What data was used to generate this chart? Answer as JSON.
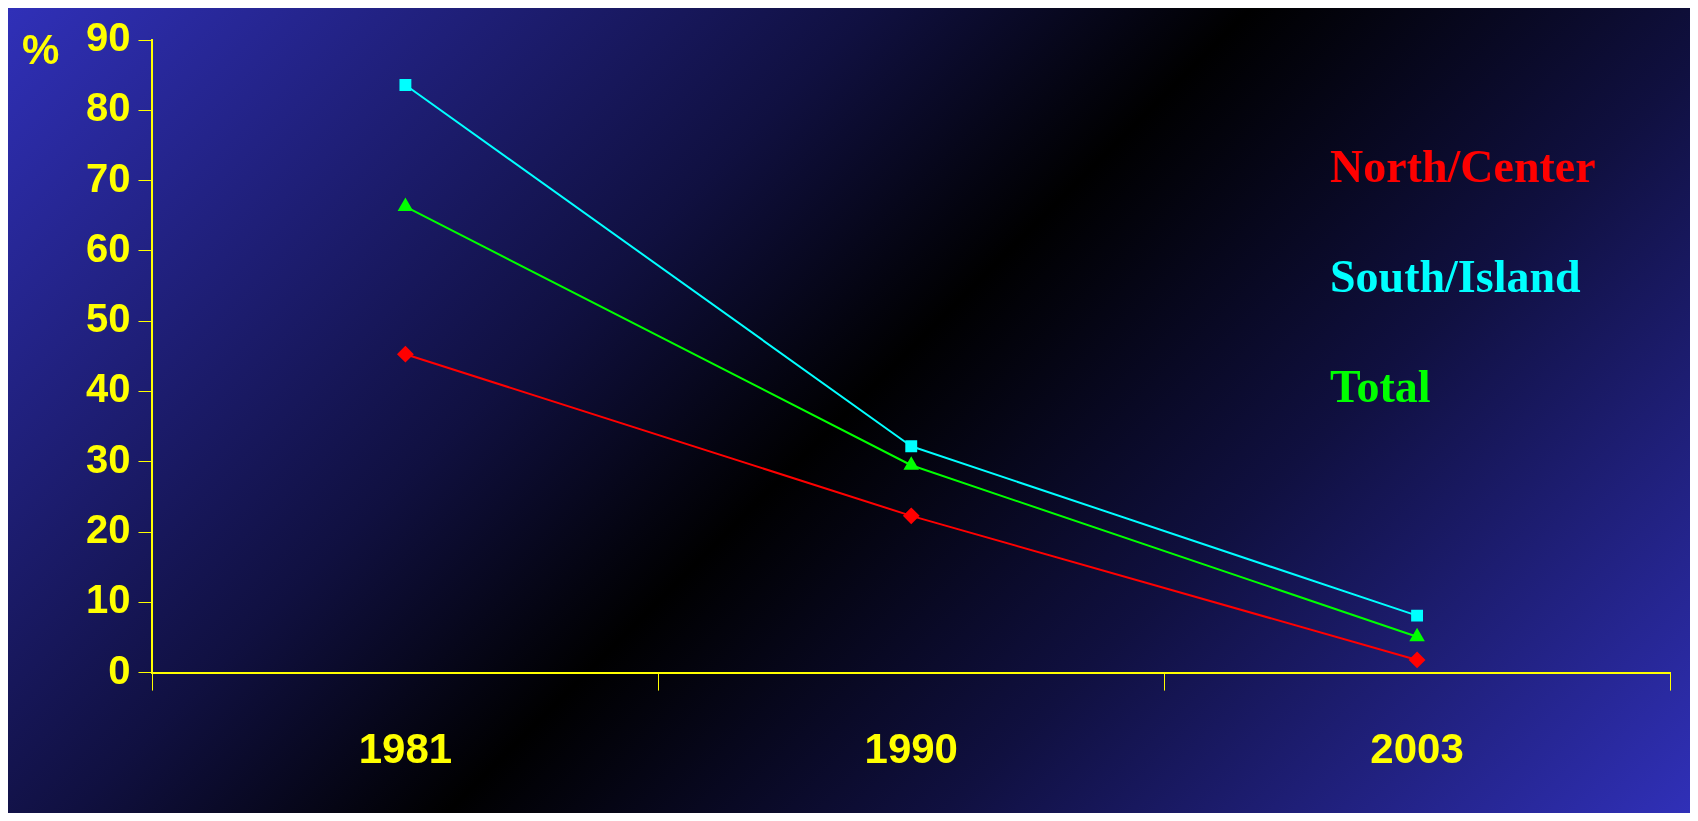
{
  "chart_data": {
    "type": "line",
    "ylabel": "%",
    "categories": [
      "1981",
      "1990",
      "2003"
    ],
    "series": [
      {
        "name": "North/Center",
        "color": "#ff0000",
        "marker": "diamond",
        "values": [
          45.3,
          22.3,
          1.8
        ]
      },
      {
        "name": "South/Island",
        "color": "#00ffff",
        "marker": "square",
        "values": [
          83.6,
          32.2,
          8.1
        ]
      },
      {
        "name": "Total",
        "color": "#00ff00",
        "marker": "triangle",
        "values": [
          66.3,
          29.5,
          5.1
        ]
      }
    ],
    "ylim": [
      0,
      90
    ],
    "yticks": [
      0,
      10,
      20,
      30,
      40,
      50,
      60,
      70,
      80,
      90
    ],
    "grid": false,
    "legend": "right",
    "line_style": "solid"
  }
}
